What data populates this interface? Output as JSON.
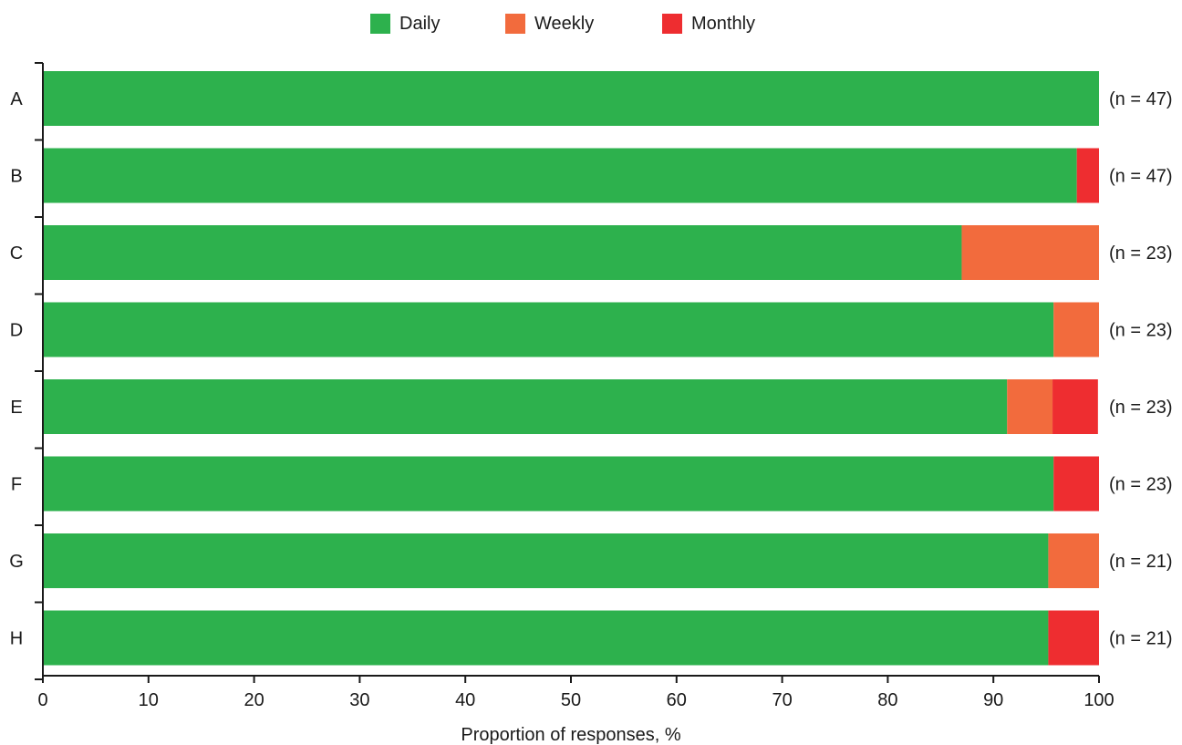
{
  "chart_data": {
    "type": "bar",
    "orientation": "horizontal",
    "stacked": true,
    "categories": [
      "A",
      "B",
      "C",
      "D",
      "E",
      "F",
      "G",
      "H"
    ],
    "annotations": [
      "(n = 47)",
      "(n = 47)",
      "(n = 23)",
      "(n = 23)",
      "(n = 23)",
      "(n = 23)",
      "(n = 21)",
      "(n = 21)"
    ],
    "series": [
      {
        "name": "Daily",
        "color": "#2db14d",
        "values": [
          100,
          97.9,
          87.0,
          95.7,
          91.3,
          95.7,
          95.2,
          95.2
        ]
      },
      {
        "name": "Weekly",
        "color": "#f26b3d",
        "values": [
          0,
          0,
          13.0,
          4.3,
          4.3,
          0,
          4.8,
          0
        ]
      },
      {
        "name": "Monthly",
        "color": "#ee2d30",
        "values": [
          0,
          2.1,
          0,
          0,
          4.3,
          4.3,
          0,
          4.8
        ]
      }
    ],
    "xlabel": "Proportion of responses, %",
    "ylabel": "",
    "xlim": [
      0,
      100
    ],
    "xticks": [
      0,
      10,
      20,
      30,
      40,
      50,
      60,
      70,
      80,
      90,
      100
    ],
    "legend_position": "top-center",
    "grid": false
  }
}
